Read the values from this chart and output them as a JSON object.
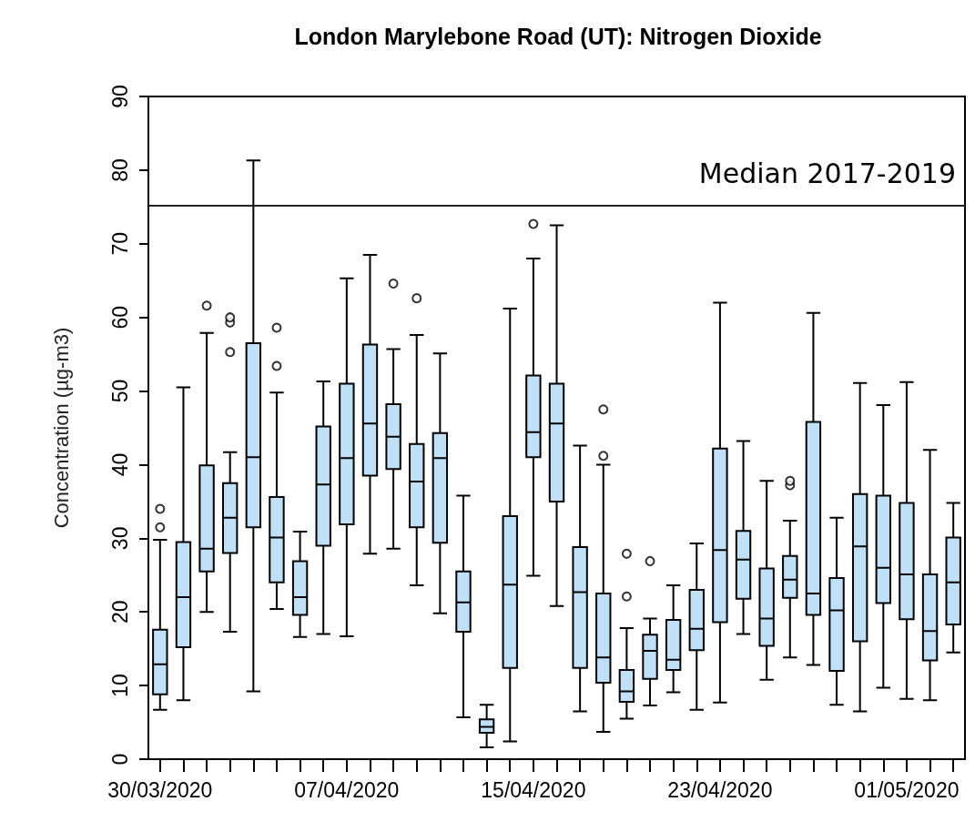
{
  "chart_data": {
    "type": "box",
    "title": "London Marylebone Road (UT): Nitrogen Dioxide",
    "ylabel": "Concentration (µg-m3)",
    "categories": [
      "30/03/2020",
      null,
      null,
      null,
      null,
      null,
      null,
      null,
      "07/04/2020",
      null,
      null,
      null,
      null,
      null,
      null,
      null,
      "15/04/2020",
      null,
      null,
      null,
      null,
      null,
      null,
      null,
      "23/04/2020",
      null,
      null,
      null,
      null,
      null,
      null,
      null,
      "01/05/2020",
      null,
      null
    ],
    "color": "#bfe0f7",
    "ylim": [
      0,
      90
    ],
    "yticks": [
      0,
      10,
      20,
      30,
      40,
      50,
      60,
      70,
      80,
      90
    ],
    "grid": false,
    "ref_lines": [
      {
        "axis": "y",
        "value": 75.2,
        "label": "Median 2017-2019"
      }
    ],
    "boxes": [
      {
        "low": 6.7,
        "q1": 8.8,
        "median": 12.9,
        "q3": 17.6,
        "high": 29.8,
        "outliers": [
          31.5,
          34.0
        ]
      },
      {
        "low": 8.0,
        "q1": 15.2,
        "median": 22.0,
        "q3": 29.5,
        "high": 50.5
      },
      {
        "low": 20.0,
        "q1": 25.5,
        "median": 28.6,
        "q3": 39.9,
        "high": 57.9,
        "outliers": [
          61.6
        ]
      },
      {
        "low": 17.3,
        "q1": 28.0,
        "median": 32.8,
        "q3": 37.5,
        "high": 41.7,
        "outliers": [
          55.3,
          59.3,
          60.0
        ]
      },
      {
        "low": 9.2,
        "q1": 31.5,
        "median": 41.0,
        "q3": 56.5,
        "high": 81.3
      },
      {
        "low": 20.4,
        "q1": 24.0,
        "median": 30.1,
        "q3": 35.6,
        "high": 49.8,
        "outliers": [
          53.4,
          58.6
        ]
      },
      {
        "low": 16.6,
        "q1": 19.6,
        "median": 22.0,
        "q3": 26.9,
        "high": 30.9
      },
      {
        "low": 17.0,
        "q1": 29.0,
        "median": 37.3,
        "q3": 45.2,
        "high": 51.3
      },
      {
        "low": 16.7,
        "q1": 31.9,
        "median": 40.9,
        "q3": 51.0,
        "high": 65.3
      },
      {
        "low": 27.9,
        "q1": 38.5,
        "median": 45.6,
        "q3": 56.3,
        "high": 68.5
      },
      {
        "low": 28.6,
        "q1": 39.4,
        "median": 43.8,
        "q3": 48.2,
        "high": 55.7,
        "outliers": [
          64.6
        ]
      },
      {
        "low": 23.6,
        "q1": 31.5,
        "median": 37.7,
        "q3": 42.8,
        "high": 57.6,
        "outliers": [
          62.6
        ]
      },
      {
        "low": 19.8,
        "q1": 29.4,
        "median": 40.9,
        "q3": 44.3,
        "high": 55.1
      },
      {
        "low": 5.7,
        "q1": 17.3,
        "median": 21.3,
        "q3": 25.5,
        "high": 35.8
      },
      {
        "low": 1.6,
        "q1": 3.6,
        "median": 4.4,
        "q3": 5.4,
        "high": 7.4
      },
      {
        "low": 2.4,
        "q1": 12.4,
        "median": 23.7,
        "q3": 33.0,
        "high": 61.2
      },
      {
        "low": 24.9,
        "q1": 41.0,
        "median": 44.4,
        "q3": 52.1,
        "high": 68.0,
        "outliers": [
          72.7
        ]
      },
      {
        "low": 20.8,
        "q1": 35.0,
        "median": 45.6,
        "q3": 51.0,
        "high": 72.5
      },
      {
        "low": 6.5,
        "q1": 12.4,
        "median": 22.7,
        "q3": 28.8,
        "high": 42.6
      },
      {
        "low": 3.7,
        "q1": 10.4,
        "median": 13.8,
        "q3": 22.5,
        "high": 40.0,
        "outliers": [
          41.2,
          47.5
        ]
      },
      {
        "low": 5.5,
        "q1": 7.8,
        "median": 9.2,
        "q3": 12.1,
        "high": 17.8,
        "outliers": [
          22.1,
          27.9
        ]
      },
      {
        "low": 7.3,
        "q1": 10.9,
        "median": 14.7,
        "q3": 16.9,
        "high": 19.1,
        "outliers": [
          26.9
        ]
      },
      {
        "low": 9.1,
        "q1": 12.1,
        "median": 13.5,
        "q3": 18.9,
        "high": 23.6
      },
      {
        "low": 6.7,
        "q1": 14.8,
        "median": 17.7,
        "q3": 23.0,
        "high": 29.3
      },
      {
        "low": 7.7,
        "q1": 18.6,
        "median": 28.4,
        "q3": 42.2,
        "high": 62.0
      },
      {
        "low": 17.0,
        "q1": 21.8,
        "median": 27.1,
        "q3": 31.0,
        "high": 43.2
      },
      {
        "low": 10.8,
        "q1": 15.4,
        "median": 19.1,
        "q3": 25.9,
        "high": 37.8
      },
      {
        "low": 13.8,
        "q1": 21.9,
        "median": 24.4,
        "q3": 27.6,
        "high": 32.4,
        "outliers": [
          37.2,
          37.8
        ]
      },
      {
        "low": 12.8,
        "q1": 19.6,
        "median": 22.5,
        "q3": 45.8,
        "high": 60.6
      },
      {
        "low": 7.4,
        "q1": 12.0,
        "median": 20.2,
        "q3": 24.6,
        "high": 32.8
      },
      {
        "low": 6.5,
        "q1": 16.0,
        "median": 28.9,
        "q3": 36.0,
        "high": 51.1
      },
      {
        "low": 9.7,
        "q1": 21.2,
        "median": 26.0,
        "q3": 35.8,
        "high": 48.1
      },
      {
        "low": 8.2,
        "q1": 19.0,
        "median": 25.1,
        "q3": 34.8,
        "high": 51.2
      },
      {
        "low": 8.0,
        "q1": 13.4,
        "median": 17.4,
        "q3": 25.1,
        "high": 42.0
      },
      {
        "low": 14.5,
        "q1": 18.3,
        "median": 24.0,
        "q3": 30.1,
        "high": 34.8
      }
    ]
  }
}
